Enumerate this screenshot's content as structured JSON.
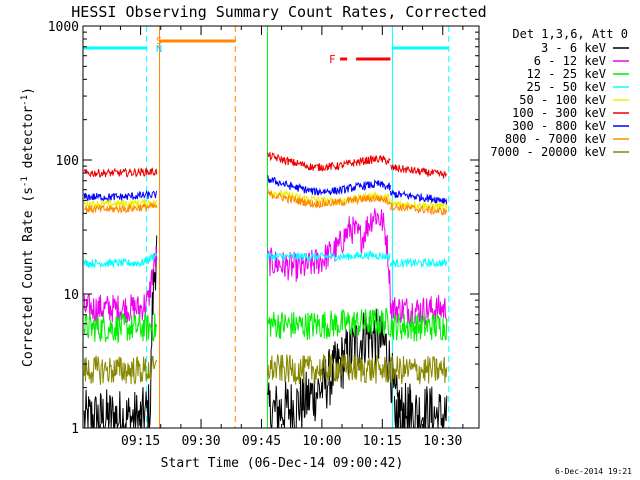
{
  "chart_data": {
    "type": "line",
    "title": "HESSI Observing Summary Count Rates, Corrected",
    "xlabel": "Start Time (06-Dec-14 09:00:42)",
    "ylabel_main": "Corrected Count Rate (s",
    "ylabel_sup1": "-1",
    "ylabel_mid": " detector",
    "ylabel_sup2": "-1",
    "ylabel_end": ")",
    "yscale": "log",
    "ylim": [
      1,
      1000
    ],
    "xlim_minutes": [
      0.7,
      99.0
    ],
    "x_ticks": [
      {
        "m": 15,
        "label": "09:15"
      },
      {
        "m": 30,
        "label": "09:30"
      },
      {
        "m": 45,
        "label": "09:45"
      },
      {
        "m": 60,
        "label": "10:00"
      },
      {
        "m": 75,
        "label": "10:15"
      },
      {
        "m": 90,
        "label": "10:30"
      }
    ],
    "y_ticks": [
      {
        "v": 1,
        "label": "1"
      },
      {
        "v": 10,
        "label": "10"
      },
      {
        "v": 100,
        "label": "100"
      },
      {
        "v": 1000,
        "label": "1000"
      }
    ],
    "legend_title": "Det 1,3,6, Att 0",
    "legend_position": "right",
    "series": [
      {
        "name": "3 - 6 keV",
        "color": "#000000",
        "segments": [
          {
            "x": [
              1,
              8,
              15,
              17.5,
              19
            ],
            "y": [
              1.15,
              1.2,
              1.15,
              1.4,
              22
            ]
          },
          {
            "x": [
              46.5,
              52,
              56,
              60,
              63,
              66,
              69,
              71,
              73,
              76,
              78,
              80,
              82
            ],
            "y": [
              1.3,
              1.4,
              1.6,
              2.0,
              2.6,
              3.4,
              4.3,
              5.0,
              4.8,
              4.0,
              1.6,
              1.3,
              1.3
            ]
          },
          {
            "x": [
              78,
              82,
              86,
              89.5,
              91
            ],
            "y": [
              1.3,
              1.25,
              1.3,
              1.2,
              1.25
            ]
          }
        ]
      },
      {
        "name": "6 - 12 keV",
        "color": "#ee00ee",
        "segments": [
          {
            "x": [
              1,
              10,
              15,
              17,
              19
            ],
            "y": [
              7.8,
              7.8,
              7.8,
              9,
              20
            ]
          },
          {
            "x": [
              46.5,
              50,
              55,
              60,
              64,
              67,
              70,
              73,
              75,
              76,
              77
            ],
            "y": [
              17.5,
              16.5,
              15.5,
              18,
              22,
              31,
              26,
              40,
              35,
              26,
              10
            ]
          },
          {
            "x": [
              77,
              82,
              86,
              91
            ],
            "y": [
              7.8,
              7.6,
              7.6,
              7.8
            ]
          }
        ]
      },
      {
        "name": "12 - 25 keV",
        "color": "#00ee00",
        "segments": [
          {
            "x": [
              1,
              10,
              19
            ],
            "y": [
              5.6,
              5.6,
              5.6
            ]
          },
          {
            "x": [
              46.5,
              55,
              65,
              77
            ],
            "y": [
              6.0,
              5.8,
              6.0,
              6.2
            ]
          },
          {
            "x": [
              77,
              84,
              91
            ],
            "y": [
              5.8,
              5.7,
              5.8
            ]
          }
        ]
      },
      {
        "name": "25 - 50 keV",
        "color": "#00ffff",
        "segments": [
          {
            "x": [
              1,
              10,
              15,
              17,
              19
            ],
            "y": [
              17,
              17,
              17,
              18,
              20
            ]
          },
          {
            "x": [
              46.5,
              55,
              65,
              72,
              77
            ],
            "y": [
              19,
              19,
              19,
              19.5,
              19
            ]
          },
          {
            "x": [
              77,
              84,
              91
            ],
            "y": [
              17,
              17,
              17
            ]
          }
        ]
      },
      {
        "name": "50 - 100 keV",
        "color": "#eeee00",
        "segments": [
          {
            "x": [
              1,
              10,
              19
            ],
            "y": [
              47,
              47,
              48
            ]
          },
          {
            "x": [
              46.5,
              55,
              62,
              68,
              72,
              77
            ],
            "y": [
              58,
              52,
              49,
              51,
              54,
              52
            ]
          },
          {
            "x": [
              77,
              84,
              91
            ],
            "y": [
              47,
              46,
              45
            ]
          }
        ]
      },
      {
        "name": "100 - 300 keV",
        "color": "#ee0000",
        "segments": [
          {
            "x": [
              1,
              10,
              19
            ],
            "y": [
              80,
              80,
              82
            ]
          },
          {
            "x": [
              46.5,
              52,
              58,
              64,
              70,
              74,
              77
            ],
            "y": [
              108,
              97,
              88,
              90,
              98,
              102,
              97
            ]
          },
          {
            "x": [
              77,
              84,
              91
            ],
            "y": [
              88,
              82,
              77
            ]
          }
        ]
      },
      {
        "name": "300 - 800 keV",
        "color": "#0000ff",
        "segments": [
          {
            "x": [
              1,
              10,
              19
            ],
            "y": [
              53,
              53,
              55
            ]
          },
          {
            "x": [
              46.5,
              52,
              58,
              64,
              70,
              74,
              77
            ],
            "y": [
              72,
              64,
              58,
              59,
              64,
              66,
              62
            ]
          },
          {
            "x": [
              77,
              84,
              91
            ],
            "y": [
              56,
              53,
              50
            ]
          }
        ]
      },
      {
        "name": "800 - 7000 keV",
        "color": "#ff8800",
        "segments": [
          {
            "x": [
              1,
              10,
              19
            ],
            "y": [
              43,
              43,
              45
            ]
          },
          {
            "x": [
              46.5,
              52,
              58,
              64,
              70,
              74,
              77
            ],
            "y": [
              56,
              51,
              47,
              48,
              51,
              52,
              49
            ]
          },
          {
            "x": [
              77,
              84,
              91
            ],
            "y": [
              45,
              43,
              41
            ]
          }
        ]
      },
      {
        "name": "7000 - 20000 keV",
        "color": "#888800",
        "segments": [
          {
            "x": [
              1,
              10,
              19
            ],
            "y": [
              2.7,
              2.7,
              2.7
            ]
          },
          {
            "x": [
              46.5,
              55,
              65,
              77
            ],
            "y": [
              2.8,
              2.7,
              2.8,
              2.7
            ]
          },
          {
            "x": [
              77,
              84,
              91
            ],
            "y": [
              2.7,
              2.7,
              2.7
            ]
          }
        ]
      }
    ],
    "annotations": {
      "saa_label": "S",
      "night_label": "N",
      "flare_label": "F",
      "night_bars": [
        {
          "x0": 0.7,
          "x1": 16.5,
          "color": "#00ffff"
        },
        {
          "x0": 77.5,
          "x1": 91.5,
          "color": "#00ffff"
        }
      ],
      "saa_bars": [
        {
          "x0": 19.7,
          "x1": 38.5,
          "color": "#ff8800"
        }
      ],
      "flare_bar": {
        "x0": 68.5,
        "x1": 77.0,
        "color": "#ff0000"
      },
      "solid_lines": [
        {
          "x": 19.7,
          "color": "#ff8800"
        },
        {
          "x": 46.5,
          "color": "#00ff00"
        },
        {
          "x": 77.5,
          "color": "#00ffff"
        }
      ],
      "dashed_lines": [
        {
          "x": 16.5,
          "color": "#00ffff"
        },
        {
          "x": 38.5,
          "color": "#ff8800"
        },
        {
          "x": 91.5,
          "color": "#00ffff"
        }
      ]
    },
    "footer_date": "6-Dec-2014 19:21"
  }
}
